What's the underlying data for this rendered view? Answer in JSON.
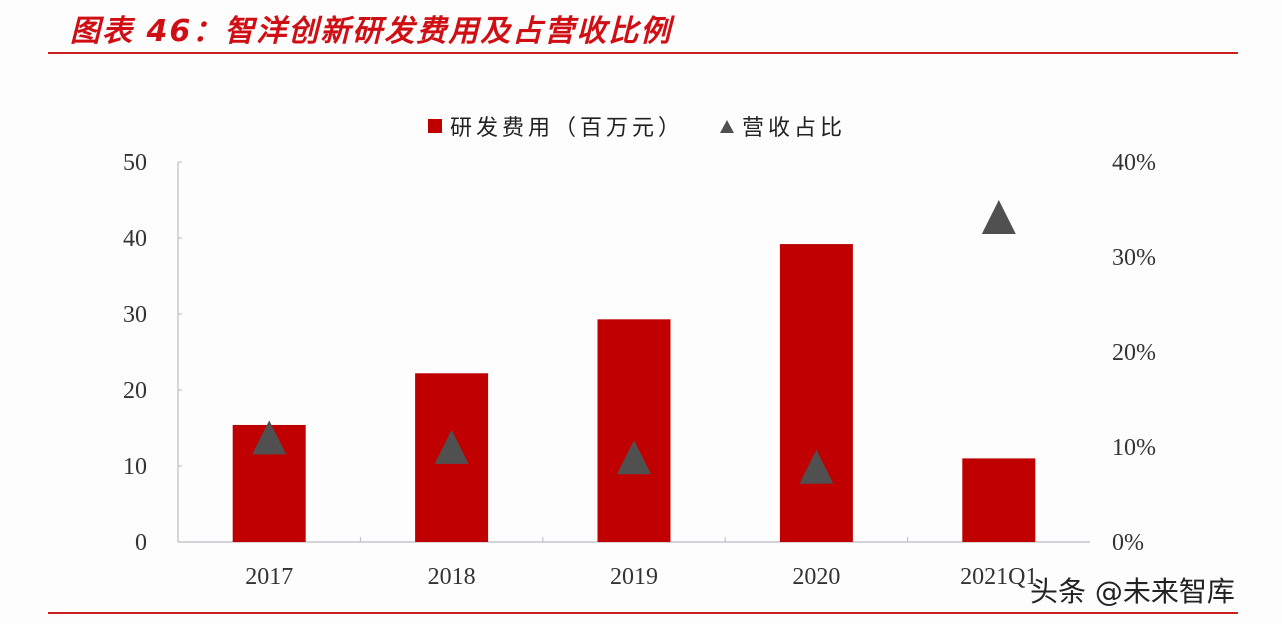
{
  "title": "图表 46：智洋创新研发费用及占营收比例",
  "legend": {
    "bar_label": "研发费用（百万元）",
    "marker_label": "营收占比"
  },
  "watermark": "头条 @未来智库",
  "colors": {
    "bar": "#c00000",
    "marker": "#505050",
    "accent": "#d00f14"
  },
  "chart_data": {
    "type": "bar",
    "title": "智洋创新研发费用及占营收比例",
    "categories": [
      "2017",
      "2018",
      "2019",
      "2020",
      "2021Q1"
    ],
    "series": [
      {
        "name": "研发费用（百万元）",
        "type": "bar",
        "axis": "left",
        "values": [
          15.4,
          22.2,
          29.3,
          39.2,
          11.0
        ]
      },
      {
        "name": "营收占比",
        "type": "scatter",
        "marker": "triangle",
        "axis": "right",
        "values": [
          0.107,
          0.097,
          0.086,
          0.076,
          0.339
        ]
      }
    ],
    "y_left": {
      "ylim": [
        0,
        50
      ],
      "ticks": [
        "0",
        "10",
        "20",
        "30",
        "40",
        "50"
      ]
    },
    "y_right": {
      "ylim": [
        0,
        0.4
      ],
      "ticks": [
        "0%",
        "10%",
        "20%",
        "30%",
        "40%"
      ]
    },
    "xlabel": "",
    "ylabel": "",
    "grid": false,
    "legend_position": "top"
  }
}
